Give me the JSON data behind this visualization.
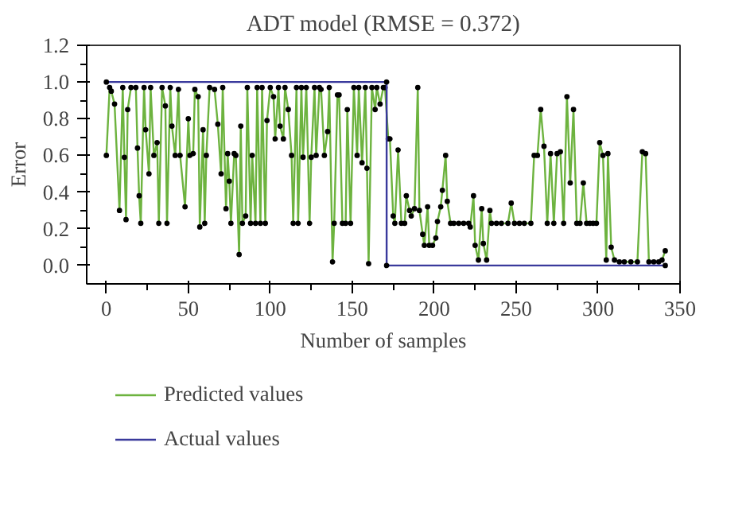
{
  "chart_data": {
    "type": "line",
    "title": "ADT model (RMSE = 0.372)",
    "xlabel": "Number of samples",
    "ylabel": "Error",
    "xlim": [
      -12,
      350
    ],
    "ylim": [
      -0.1,
      1.2
    ],
    "xticks": [
      0,
      50,
      100,
      150,
      200,
      250,
      300,
      350
    ],
    "yticks": [
      {
        "value": 0,
        "label": "0.0"
      },
      {
        "value": 0.2,
        "label": "0.2"
      },
      {
        "value": 0.4,
        "label": "0.4"
      },
      {
        "value": 0.6,
        "label": "0.6"
      },
      {
        "value": 0.8,
        "label": "0.8"
      },
      {
        "value": 1,
        "label": "1.0"
      },
      {
        "value": 1.2,
        "label": "1.2"
      }
    ],
    "grid": false,
    "legend": "bottom",
    "marker": "circle",
    "line_style": "solid",
    "series": [
      {
        "name": "Predicted values",
        "color": "#6db33f",
        "x": [
          0,
          2,
          3,
          5,
          8,
          10,
          11,
          12,
          13,
          15,
          18,
          19,
          20,
          21,
          23,
          24,
          26,
          27,
          29,
          31,
          32,
          34,
          36,
          37,
          39,
          40,
          42,
          44,
          45,
          48,
          50,
          51,
          53,
          54,
          56,
          57,
          59,
          60,
          61,
          63,
          66,
          68,
          70,
          71,
          73,
          74,
          75,
          76,
          78,
          79,
          81,
          82,
          83,
          85,
          86,
          88,
          89,
          91,
          92,
          94,
          95,
          97,
          98,
          100,
          102,
          103,
          105,
          106,
          108,
          109,
          111,
          113,
          114,
          116,
          117,
          119,
          120,
          122,
          124,
          125,
          127,
          128,
          130,
          131,
          133,
          135,
          136,
          138,
          139,
          141,
          142,
          144,
          146,
          147,
          149,
          151,
          153,
          154,
          156,
          158,
          159,
          160,
          162,
          164,
          165,
          167,
          169,
          170,
          172,
          173,
          175,
          176,
          178,
          180,
          182,
          183,
          185,
          186,
          188,
          190,
          191,
          193,
          194,
          196,
          197,
          199,
          201,
          202,
          204,
          205,
          207,
          208,
          210,
          212,
          215,
          218,
          221,
          222,
          224,
          225,
          227,
          229,
          230,
          232,
          234,
          235,
          238,
          241,
          245,
          247,
          249,
          252,
          255,
          259,
          261,
          263,
          265,
          267,
          269,
          271,
          273,
          275,
          277,
          279,
          281,
          283,
          285,
          287,
          289,
          291,
          293,
          295,
          297,
          299,
          301,
          303,
          305,
          306,
          308,
          310,
          313,
          316,
          320,
          324,
          327,
          329,
          331,
          334,
          337,
          339,
          341
        ],
        "values": [
          0.6,
          0.97,
          0.95,
          0.88,
          0.3,
          0.97,
          0.59,
          0.25,
          0.85,
          0.97,
          0.97,
          0.64,
          0.38,
          0.23,
          0.97,
          0.74,
          0.5,
          0.97,
          0.6,
          0.67,
          0.23,
          0.97,
          0.87,
          0.23,
          0.97,
          0.76,
          0.6,
          0.96,
          0.6,
          0.32,
          0.8,
          0.6,
          0.61,
          0.96,
          0.92,
          0.21,
          0.74,
          0.23,
          0.6,
          0.97,
          0.96,
          0.77,
          0.5,
          0.97,
          0.31,
          0.61,
          0.46,
          0.23,
          0.61,
          0.6,
          0.06,
          0.76,
          0.23,
          0.27,
          0.97,
          0.23,
          0.6,
          0.23,
          0.97,
          0.23,
          0.97,
          0.23,
          0.79,
          0.97,
          0.92,
          0.69,
          0.97,
          0.76,
          0.69,
          0.97,
          0.85,
          0.6,
          0.23,
          0.97,
          0.23,
          0.97,
          0.59,
          0.97,
          0.23,
          0.59,
          0.97,
          0.6,
          0.97,
          0.96,
          0.6,
          0.73,
          0.97,
          0.02,
          0.23,
          0.93,
          0.93,
          0.23,
          0.23,
          0.85,
          0.23,
          0.97,
          0.6,
          0.97,
          0.56,
          0.97,
          0.53,
          0.01,
          0.97,
          0.85,
          0.97,
          0.88,
          0.97,
          0.97,
          0.69,
          0.69,
          0.27,
          0.23,
          0.63,
          0.23,
          0.23,
          0.38,
          0.3,
          0.27,
          0.31,
          0.97,
          0.3,
          0.17,
          0.11,
          0.32,
          0.11,
          0.11,
          0.15,
          0.24,
          0.32,
          0.41,
          0.6,
          0.35,
          0.23,
          0.23,
          0.23,
          0.23,
          0.23,
          0.21,
          0.38,
          0.11,
          0.03,
          0.31,
          0.12,
          0.03,
          0.3,
          0.23,
          0.23,
          0.23,
          0.23,
          0.34,
          0.23,
          0.23,
          0.23,
          0.23,
          0.6,
          0.6,
          0.85,
          0.65,
          0.23,
          0.61,
          0.23,
          0.61,
          0.62,
          0.23,
          0.92,
          0.45,
          0.85,
          0.23,
          0.23,
          0.45,
          0.23,
          0.23,
          0.23,
          0.23,
          0.67,
          0.6,
          0.03,
          0.61,
          0.1,
          0.03,
          0.02,
          0.02,
          0.02,
          0.02,
          0.62,
          0.61,
          0.02,
          0.02,
          0.02,
          0.03,
          0.08
        ]
      },
      {
        "name": "Actual values",
        "color": "#3a3a9c",
        "x": [
          0,
          171,
          171,
          341
        ],
        "values": [
          1,
          1,
          0,
          0
        ]
      }
    ]
  }
}
